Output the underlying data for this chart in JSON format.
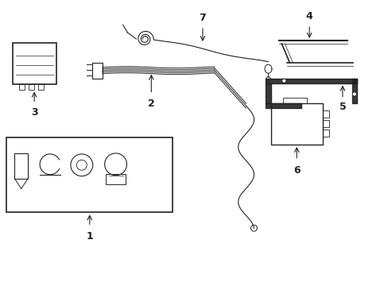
{
  "background_color": "#ffffff",
  "line_color": "#222222",
  "figsize": [
    4.89,
    3.6
  ],
  "dpi": 100,
  "xlim": [
    0,
    4.89
  ],
  "ylim": [
    0,
    3.6
  ]
}
